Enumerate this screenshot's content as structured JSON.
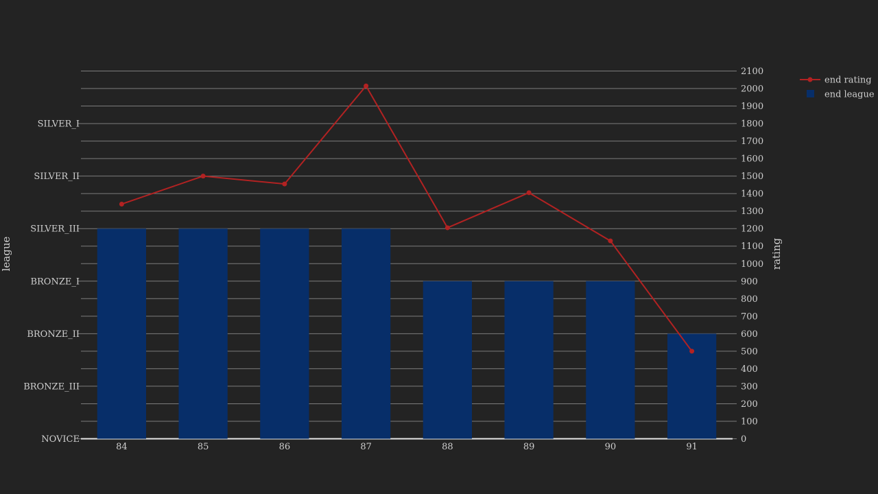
{
  "chart_data": {
    "type": "bar+line",
    "title": "",
    "categories": [
      "84",
      "85",
      "86",
      "87",
      "88",
      "89",
      "90",
      "91"
    ],
    "y_left": {
      "label": "league",
      "range": [
        0,
        3500
      ],
      "ticks": [
        {
          "value": 0,
          "label": "NOVICE"
        },
        {
          "value": 500,
          "label": "BRONZE_III"
        },
        {
          "value": 1000,
          "label": "BRONZE_II"
        },
        {
          "value": 1500,
          "label": "BRONZE_I"
        },
        {
          "value": 2000,
          "label": "SILVER_III"
        },
        {
          "value": 2500,
          "label": "SILVER_II"
        },
        {
          "value": 3000,
          "label": "SILVER_I"
        }
      ]
    },
    "y_right": {
      "label": "rating",
      "range": [
        0,
        2100
      ],
      "ticks": [
        0,
        100,
        200,
        300,
        400,
        500,
        600,
        700,
        800,
        900,
        1000,
        1100,
        1200,
        1300,
        1400,
        1500,
        1600,
        1700,
        1800,
        1900,
        2000,
        2100
      ]
    },
    "series": [
      {
        "name": "end league",
        "type": "bar",
        "axis": "left",
        "color": "#072e69",
        "values": [
          "SILVER_III",
          "SILVER_III",
          "SILVER_III",
          "SILVER_III",
          "BRONZE_I",
          "BRONZE_I",
          "BRONZE_I",
          "BRONZE_II"
        ]
      },
      {
        "name": "end rating",
        "type": "line",
        "axis": "right",
        "color": "#b22222",
        "values": [
          1340,
          1500,
          1455,
          2015,
          1205,
          1405,
          1130,
          500
        ]
      }
    ],
    "grid": true,
    "legend_position": "top-right"
  }
}
